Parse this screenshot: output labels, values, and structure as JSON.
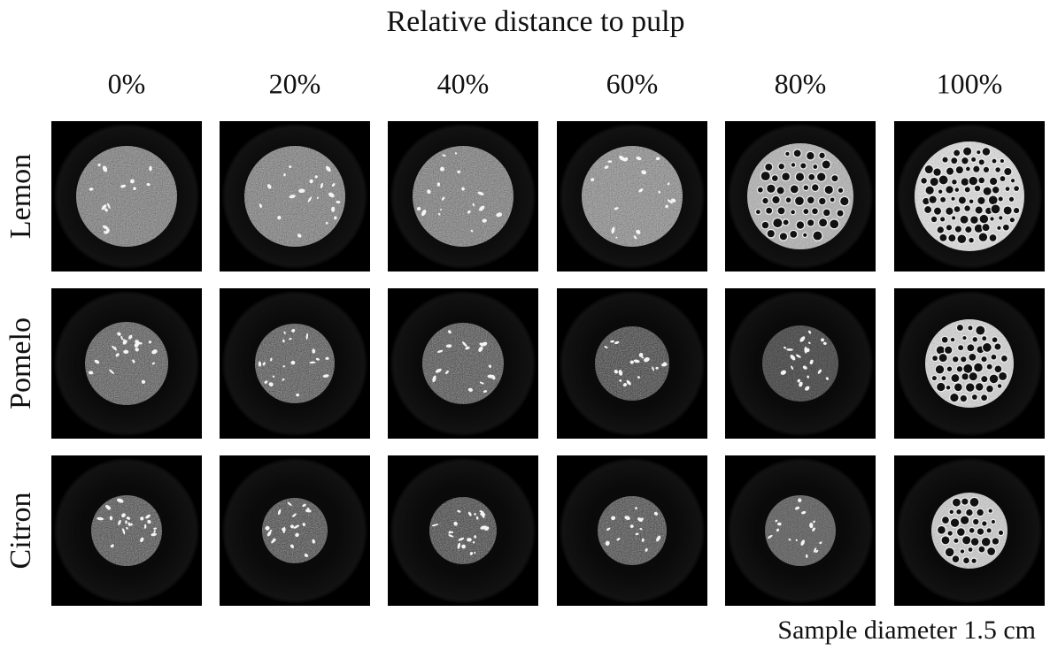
{
  "title": "Relative distance to pulp",
  "columns": [
    "0%",
    "20%",
    "40%",
    "60%",
    "80%",
    "100%"
  ],
  "rows": [
    "Lemon",
    "Pomelo",
    "Citron"
  ],
  "note": "Sample diameter 1.5 cm"
}
